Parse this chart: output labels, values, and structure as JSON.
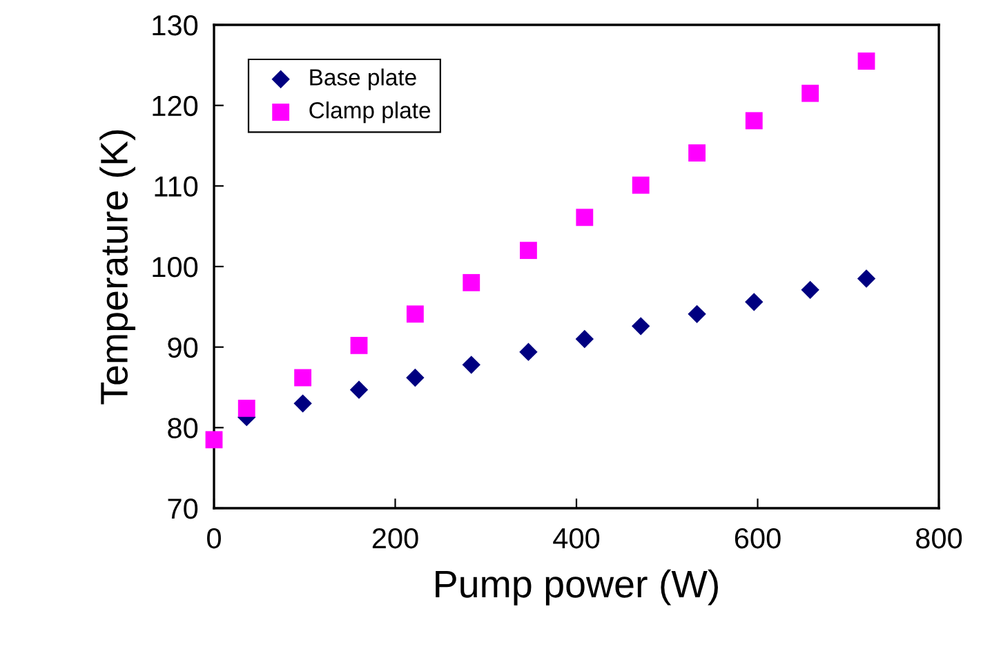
{
  "chart_data": {
    "type": "scatter",
    "xlabel": "Pump power (W)",
    "ylabel": "Temperature (K)",
    "x": [
      0,
      36,
      98,
      160,
      222,
      284,
      347,
      409,
      471,
      533,
      596,
      658,
      720
    ],
    "series": [
      {
        "name": "Base plate",
        "color": "#000080",
        "marker": "diamond",
        "values": [
          null,
          81.3,
          83.0,
          84.7,
          86.2,
          87.8,
          89.4,
          91.0,
          92.6,
          94.1,
          95.6,
          97.1,
          98.5
        ]
      },
      {
        "name": "Clamp plate",
        "color": "#ff00ff",
        "marker": "square",
        "values": [
          78.5,
          82.4,
          86.2,
          90.2,
          94.1,
          98.0,
          102.0,
          106.1,
          110.1,
          114.1,
          118.1,
          121.5,
          125.5
        ]
      }
    ],
    "xlim": [
      0,
      800
    ],
    "xticks": [
      0,
      200,
      400,
      600,
      800
    ],
    "ylim": [
      70,
      130
    ],
    "yticks": [
      70,
      80,
      90,
      100,
      110,
      120,
      130
    ],
    "grid": false,
    "legend": "top left"
  }
}
